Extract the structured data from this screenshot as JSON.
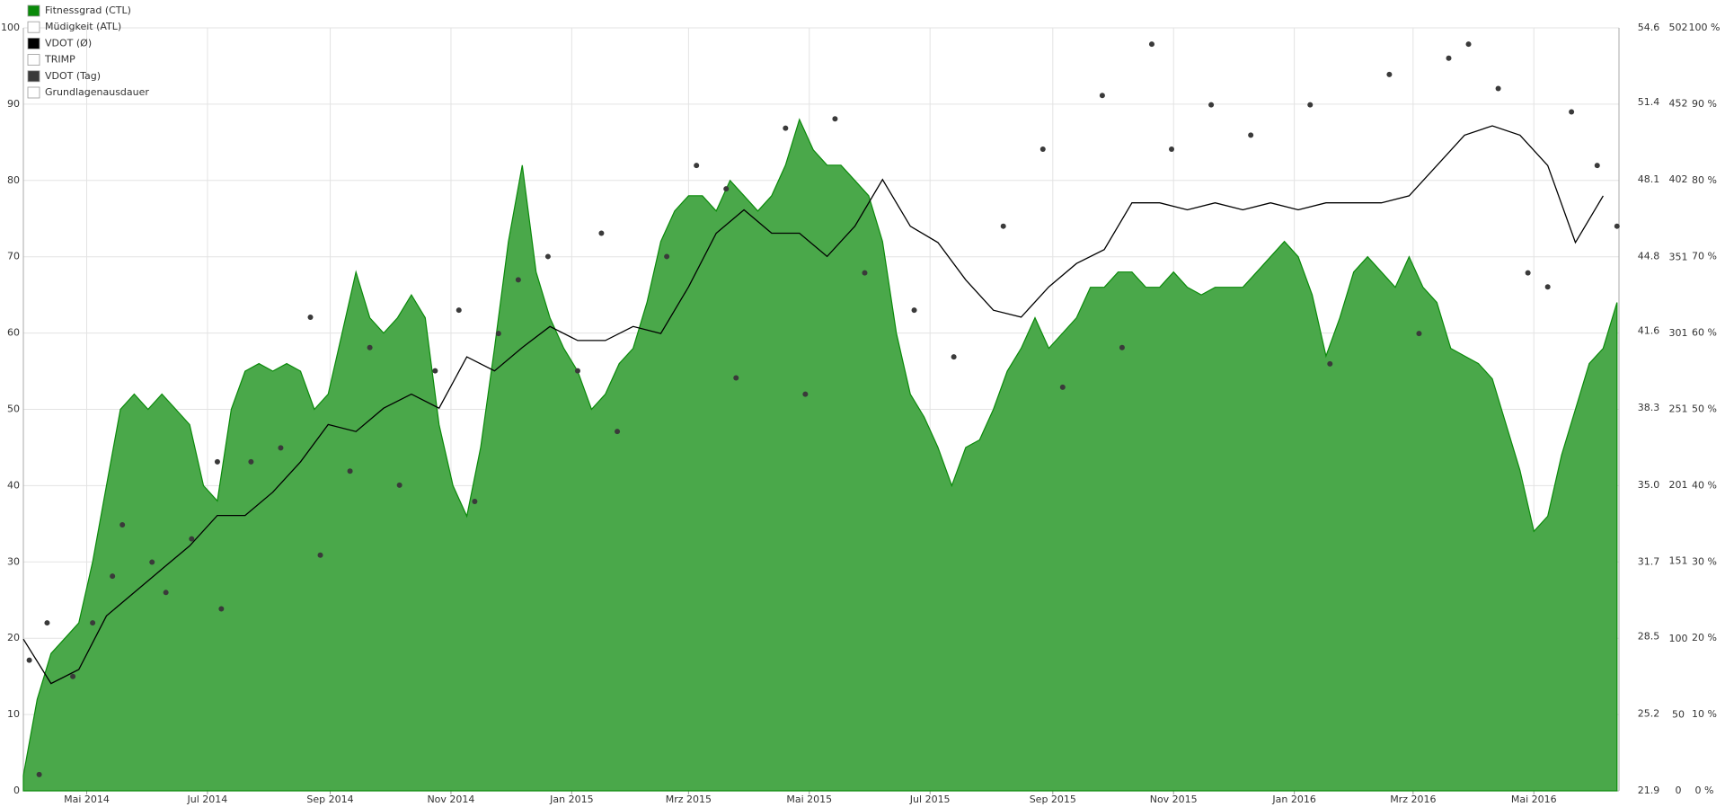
{
  "chart_data": {
    "type": "combo",
    "xlim": [
      0,
      806
    ],
    "xticks": [
      {
        "value": 32,
        "label": "Mai 2014"
      },
      {
        "value": 93,
        "label": "Jul 2014"
      },
      {
        "value": 155,
        "label": "Sep 2014"
      },
      {
        "value": 216,
        "label": "Nov 2014"
      },
      {
        "value": 277,
        "label": "Jan 2015"
      },
      {
        "value": 336,
        "label": "Mrz 2015"
      },
      {
        "value": 397,
        "label": "Mai 2015"
      },
      {
        "value": 458,
        "label": "Jul 2015"
      },
      {
        "value": 520,
        "label": "Sep 2015"
      },
      {
        "value": 581,
        "label": "Nov 2015"
      },
      {
        "value": 642,
        "label": "Jan 2016"
      },
      {
        "value": 702,
        "label": "Mrz 2016"
      },
      {
        "value": 763,
        "label": "Mai 2016"
      }
    ],
    "ylim": [
      0,
      100
    ],
    "yticks": [
      0,
      10,
      20,
      30,
      40,
      50,
      60,
      70,
      80,
      90,
      100
    ],
    "y2lim": [
      21.9,
      54.6
    ],
    "y2ticks": [
      {
        "value": 21.9,
        "label": "21.9"
      },
      {
        "value": 25.2,
        "label": "25.2"
      },
      {
        "value": 28.5,
        "label": "28.5"
      },
      {
        "value": 31.7,
        "label": "31.7"
      },
      {
        "value": 35.0,
        "label": "35.0"
      },
      {
        "value": 38.3,
        "label": "38.3"
      },
      {
        "value": 41.6,
        "label": "41.6"
      },
      {
        "value": 44.8,
        "label": "44.8"
      },
      {
        "value": 48.1,
        "label": "48.1"
      },
      {
        "value": 51.4,
        "label": "51.4"
      },
      {
        "value": 54.6,
        "label": "54.6"
      }
    ],
    "y3lim": [
      0,
      502
    ],
    "y3ticks": [
      0,
      50,
      100,
      151,
      201,
      251,
      301,
      351,
      402,
      452,
      502
    ],
    "y4lim": [
      0,
      100
    ],
    "y4ticks": [
      {
        "value": 0,
        "label": "0 %"
      },
      {
        "value": 10,
        "label": "10 %"
      },
      {
        "value": 20,
        "label": "20 %"
      },
      {
        "value": 30,
        "label": "30 %"
      },
      {
        "value": 40,
        "label": "40 %"
      },
      {
        "value": 50,
        "label": "50 %"
      },
      {
        "value": 60,
        "label": "60 %"
      },
      {
        "value": 70,
        "label": "70 %"
      },
      {
        "value": 80,
        "label": "80 %"
      },
      {
        "value": 90,
        "label": "90 %"
      },
      {
        "value": 100,
        "label": "100 %"
      }
    ],
    "grid": true,
    "series": [
      {
        "name": "Fitnessgrad (CTL)",
        "type": "area",
        "color": "#0a8a0a",
        "fill": "#4aa84a",
        "x": [
          0,
          7,
          14,
          21,
          28,
          35,
          42,
          49,
          56,
          63,
          70,
          77,
          84,
          91,
          98,
          105,
          112,
          119,
          126,
          133,
          140,
          147,
          154,
          161,
          168,
          175,
          182,
          189,
          196,
          203,
          210,
          217,
          224,
          231,
          238,
          245,
          252,
          259,
          266,
          273,
          280,
          287,
          294,
          301,
          308,
          315,
          322,
          329,
          336,
          343,
          350,
          357,
          364,
          371,
          378,
          385,
          392,
          399,
          406,
          413,
          420,
          427,
          434,
          441,
          448,
          455,
          462,
          469,
          476,
          483,
          490,
          497,
          504,
          511,
          518,
          525,
          532,
          539,
          546,
          553,
          560,
          567,
          574,
          581,
          588,
          595,
          602,
          609,
          616,
          623,
          630,
          637,
          644,
          651,
          658,
          665,
          672,
          679,
          686,
          693,
          700,
          707,
          714,
          721,
          728,
          735,
          742,
          749,
          756,
          763,
          770,
          777,
          784,
          791,
          798,
          805
        ],
        "values": [
          2,
          12,
          18,
          20,
          22,
          30,
          40,
          50,
          52,
          50,
          52,
          50,
          48,
          40,
          38,
          50,
          55,
          56,
          55,
          56,
          55,
          50,
          52,
          60,
          68,
          62,
          60,
          62,
          65,
          62,
          48,
          40,
          36,
          45,
          58,
          72,
          82,
          68,
          62,
          58,
          55,
          50,
          52,
          56,
          58,
          64,
          72,
          76,
          78,
          78,
          76,
          80,
          78,
          76,
          78,
          82,
          88,
          84,
          82,
          82,
          80,
          78,
          72,
          60,
          52,
          49,
          45,
          40,
          45,
          46,
          50,
          55,
          58,
          62,
          58,
          60,
          62,
          66,
          66,
          68,
          68,
          66,
          66,
          68,
          66,
          65,
          66,
          66,
          66,
          68,
          70,
          72,
          70,
          65,
          57,
          62,
          68,
          70,
          68,
          66,
          70,
          66,
          64,
          58,
          57,
          56,
          54,
          48,
          42,
          34,
          36,
          44,
          50,
          56,
          58,
          64
        ]
      },
      {
        "name": "Müdigkeit (ATL)",
        "type": "hidden",
        "color": "#ffffff",
        "values": []
      },
      {
        "name": "VDOT (Ø)",
        "type": "line",
        "axis": "y2",
        "color": "#000000",
        "x": [
          0,
          14,
          28,
          42,
          56,
          70,
          84,
          98,
          112,
          126,
          140,
          154,
          168,
          182,
          196,
          210,
          224,
          238,
          252,
          266,
          280,
          294,
          308,
          322,
          336,
          350,
          364,
          378,
          392,
          406,
          420,
          434,
          448,
          462,
          476,
          490,
          504,
          518,
          532,
          546,
          560,
          574,
          588,
          602,
          616,
          630,
          644,
          658,
          672,
          686,
          700,
          714,
          728,
          742,
          756,
          770,
          784,
          798
        ],
        "values": [
          28.4,
          26.5,
          27.1,
          29.4,
          30.4,
          31.4,
          32.4,
          33.7,
          33.7,
          34.7,
          36.0,
          37.6,
          37.3,
          38.3,
          38.9,
          38.3,
          40.5,
          39.9,
          40.9,
          41.8,
          41.2,
          41.2,
          41.8,
          41.5,
          43.5,
          45.8,
          46.8,
          45.8,
          45.8,
          44.8,
          46.1,
          48.1,
          46.1,
          45.4,
          43.8,
          42.5,
          42.2,
          43.5,
          44.5,
          45.1,
          47.1,
          47.1,
          46.8,
          47.1,
          46.8,
          47.1,
          46.8,
          47.1,
          47.1,
          47.1,
          47.4,
          48.7,
          50.0,
          50.4,
          50.0,
          48.7,
          45.4,
          47.4
        ]
      },
      {
        "name": "TRIMP",
        "type": "hidden",
        "color": "#ffffff",
        "values": []
      },
      {
        "name": "VDOT (Tag)",
        "type": "scatter",
        "axis": "y2",
        "color": "#3a3a3a",
        "x": [
          3,
          8,
          12,
          25,
          35,
          45,
          50,
          65,
          72,
          85,
          98,
          100,
          115,
          130,
          145,
          150,
          165,
          175,
          190,
          208,
          220,
          228,
          240,
          250,
          265,
          280,
          292,
          300,
          325,
          340,
          355,
          360,
          385,
          395,
          410,
          425,
          450,
          470,
          495,
          515,
          525,
          545,
          555,
          570,
          580,
          600,
          620,
          650,
          660,
          690,
          705,
          720,
          730,
          745,
          760,
          770,
          782,
          795,
          805
        ],
        "values": [
          27.5,
          22.6,
          29.1,
          26.8,
          29.1,
          31.1,
          33.3,
          31.7,
          30.4,
          32.7,
          36.0,
          29.7,
          36.0,
          36.6,
          42.2,
          32.0,
          35.6,
          40.9,
          35.0,
          39.9,
          42.5,
          34.3,
          41.5,
          43.8,
          44.8,
          39.9,
          45.8,
          37.3,
          44.8,
          48.7,
          47.7,
          39.6,
          50.3,
          38.9,
          50.7,
          44.1,
          42.5,
          40.5,
          46.1,
          49.4,
          39.2,
          51.7,
          40.9,
          53.9,
          49.4,
          51.3,
          50.0,
          51.3,
          40.2,
          52.6,
          41.5,
          53.3,
          53.9,
          52.0,
          44.1,
          43.5,
          51.0,
          48.7,
          46.1
        ]
      },
      {
        "name": "Grundlagenausdauer",
        "type": "hidden",
        "color": "#ffffff",
        "values": []
      }
    ]
  }
}
